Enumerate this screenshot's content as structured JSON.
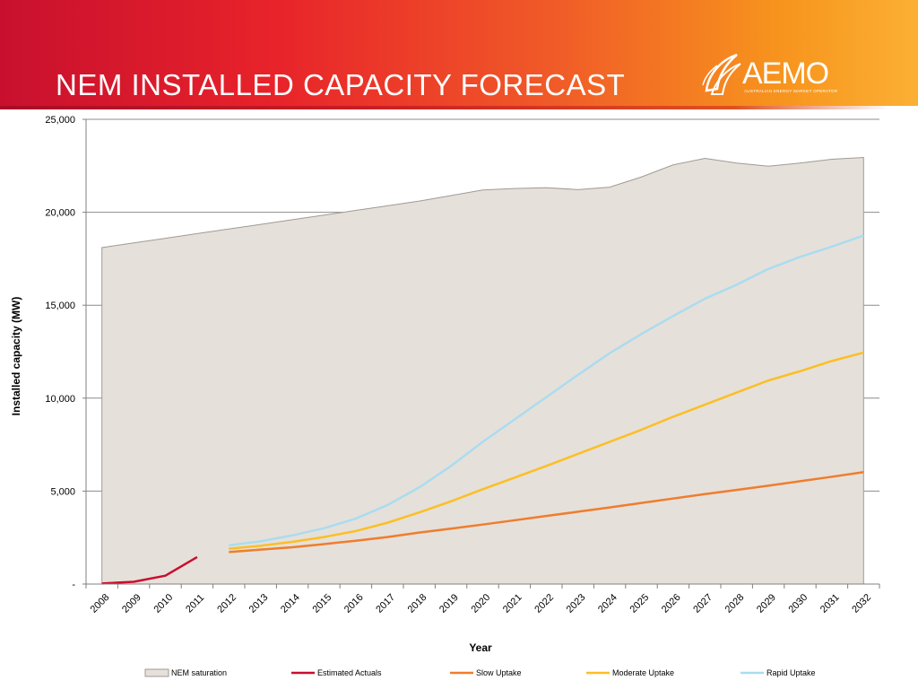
{
  "slide": {
    "title": "NEM INSTALLED CAPACITY FORECAST",
    "logo": {
      "name": "AEMO",
      "subtitle": "AUSTRALIAN ENERGY MARKET OPERATOR"
    }
  },
  "colors": {
    "saturation_fill": "#e6e0da",
    "saturation_line": "#a09a95",
    "estimated_actuals": "#c8102e",
    "slow_uptake": "#ef7d2d",
    "moderate_uptake": "#fbbf24",
    "rapid_uptake": "#aadcf0"
  },
  "chart_data": {
    "type": "line",
    "title": "",
    "xlabel": "Year",
    "ylabel": "Installed capacity (MW)",
    "ylim": [
      0,
      25000
    ],
    "y_ticks": [
      0,
      5000,
      10000,
      15000,
      20000,
      25000
    ],
    "y_tick_labels": [
      "-",
      "5,000",
      "10,000",
      "15,000",
      "20,000",
      "25,000"
    ],
    "categories": [
      "2008",
      "2009",
      "2010",
      "2011",
      "2012",
      "2013",
      "2014",
      "2015",
      "2016",
      "2017",
      "2018",
      "2019",
      "2020",
      "2021",
      "2022",
      "2023",
      "2024",
      "2025",
      "2026",
      "2027",
      "2028",
      "2029",
      "2030",
      "2031",
      "2032"
    ],
    "grid": "horizontal",
    "legend_position": "bottom",
    "series": [
      {
        "name": "NEM saturation",
        "kind": "area",
        "values": [
          18100,
          18350,
          18600,
          18850,
          19100,
          19350,
          19600,
          19850,
          20100,
          20350,
          20600,
          20900,
          21200,
          21280,
          21320,
          21220,
          21350,
          21900,
          22550,
          22900,
          22650,
          22480,
          22650,
          22850,
          22950
        ]
      },
      {
        "name": "Estimated Actuals",
        "kind": "line",
        "values": [
          30,
          120,
          450,
          1450,
          null,
          null,
          null,
          null,
          null,
          null,
          null,
          null,
          null,
          null,
          null,
          null,
          null,
          null,
          null,
          null,
          null,
          null,
          null,
          null,
          null
        ]
      },
      {
        "name": "Slow Uptake",
        "kind": "line",
        "values": [
          null,
          null,
          null,
          null,
          1720,
          1850,
          1980,
          2150,
          2330,
          2530,
          2770,
          2980,
          3200,
          3430,
          3660,
          3890,
          4120,
          4360,
          4600,
          4840,
          5060,
          5290,
          5530,
          5770,
          6020
        ]
      },
      {
        "name": "Moderate Uptake",
        "kind": "line",
        "values": [
          null,
          null,
          null,
          null,
          1900,
          2060,
          2270,
          2530,
          2850,
          3300,
          3850,
          4450,
          5100,
          5720,
          6350,
          7000,
          7650,
          8300,
          9000,
          9650,
          10300,
          10950,
          11450,
          12000,
          12450
        ]
      },
      {
        "name": "Rapid Uptake",
        "kind": "line",
        "values": [
          null,
          null,
          null,
          null,
          2080,
          2300,
          2620,
          3000,
          3520,
          4250,
          5200,
          6350,
          7650,
          8850,
          10050,
          11250,
          12420,
          13450,
          14420,
          15350,
          16100,
          16950,
          17600,
          18150,
          18750
        ]
      }
    ]
  }
}
